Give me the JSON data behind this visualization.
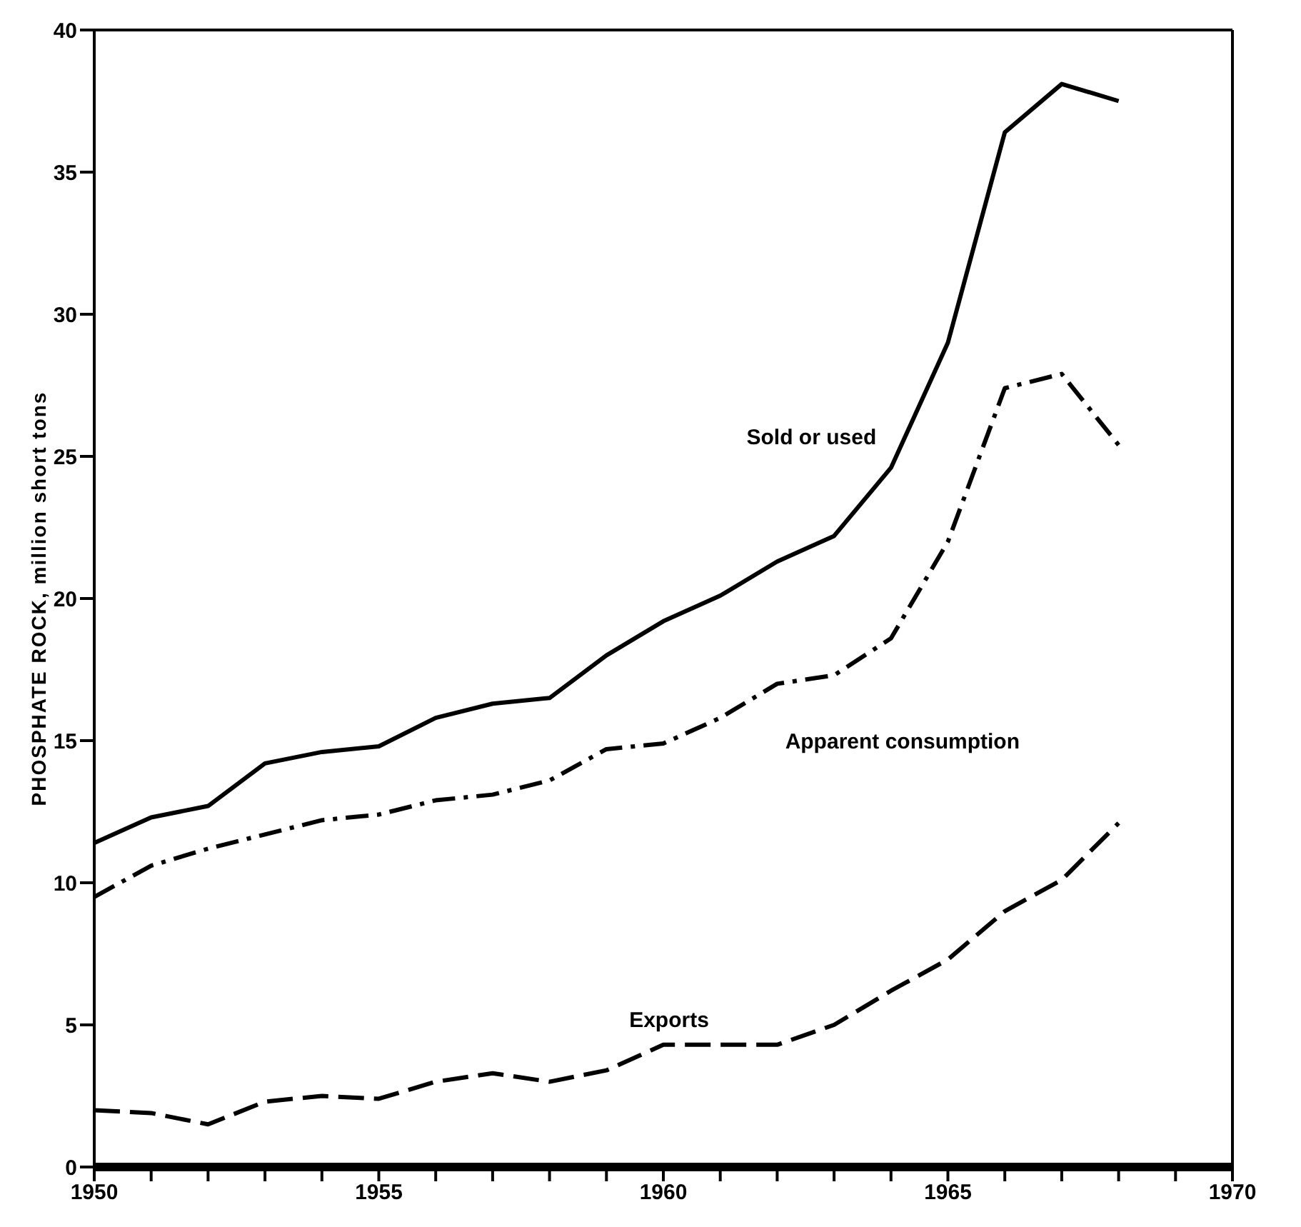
{
  "chart_data": {
    "type": "line",
    "ylabel": "PHOSPHATE ROCK,  million short tons",
    "x": [
      1950,
      1951,
      1952,
      1953,
      1954,
      1955,
      1956,
      1957,
      1958,
      1959,
      1960,
      1961,
      1962,
      1963,
      1964,
      1965,
      1966,
      1967,
      1968
    ],
    "series": [
      {
        "name": "Sold or used",
        "color": "#000000",
        "line_style": "solid",
        "values": [
          11.4,
          12.3,
          12.7,
          14.2,
          14.6,
          14.8,
          15.8,
          16.3,
          16.5,
          18.0,
          19.2,
          20.1,
          21.3,
          22.2,
          24.6,
          29.0,
          36.4,
          38.1,
          37.5
        ]
      },
      {
        "name": "Apparent consumption",
        "color": "#000000",
        "line_style": "dashdot",
        "values": [
          9.5,
          10.6,
          11.2,
          11.7,
          12.2,
          12.4,
          12.9,
          13.1,
          13.6,
          14.7,
          14.9,
          15.8,
          17.0,
          17.3,
          18.6,
          22.0,
          27.4,
          27.9,
          25.4
        ]
      },
      {
        "name": "Exports",
        "color": "#000000",
        "line_style": "dashed",
        "values": [
          2.0,
          1.9,
          1.5,
          2.3,
          2.5,
          2.4,
          3.0,
          3.3,
          3.0,
          3.4,
          4.3,
          4.3,
          4.3,
          5.0,
          6.2,
          7.3,
          9.0,
          10.1,
          12.1
        ]
      }
    ],
    "xlim": [
      1950,
      1970
    ],
    "xticks": [
      1950,
      {
        "value": 1951,
        "label": null
      },
      {
        "value": 1952,
        "label": null
      },
      {
        "value": 1953,
        "label": null
      },
      {
        "value": 1954,
        "label": null
      },
      1955,
      {
        "value": 1956,
        "label": null
      },
      {
        "value": 1957,
        "label": null
      },
      {
        "value": 1958,
        "label": null
      },
      {
        "value": 1959,
        "label": null
      },
      1960,
      {
        "value": 1961,
        "label": null
      },
      {
        "value": 1962,
        "label": null
      },
      {
        "value": 1963,
        "label": null
      },
      {
        "value": 1964,
        "label": null
      },
      1965,
      {
        "value": 1966,
        "label": null
      },
      {
        "value": 1967,
        "label": null
      },
      {
        "value": 1968,
        "label": null
      },
      {
        "value": 1969,
        "label": null
      },
      1970
    ],
    "ylim": [
      0,
      40
    ],
    "yticks": [
      0,
      5,
      10,
      15,
      20,
      25,
      30,
      35,
      40
    ],
    "grid": false,
    "legend": false,
    "marker": "none"
  }
}
